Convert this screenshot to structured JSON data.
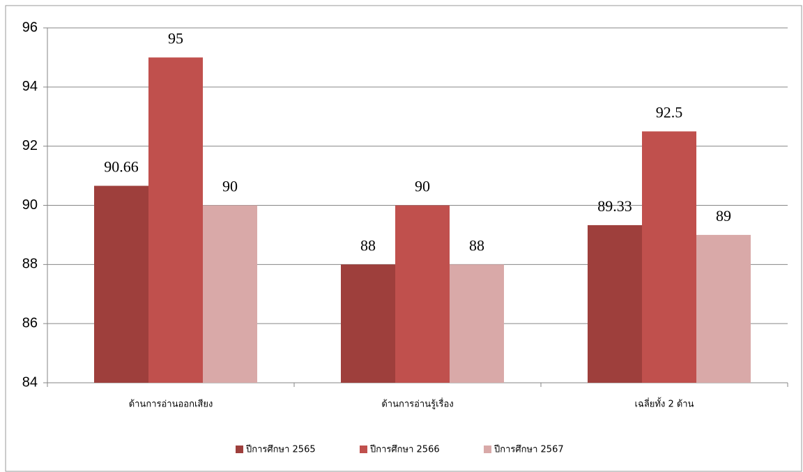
{
  "chart_data": {
    "type": "bar",
    "categories": [
      "ด้านการอ่านออกเสียง",
      "ด้านการอ่านรู้เรื่อง",
      "เฉลี่ยทั้ง 2 ด้าน"
    ],
    "series": [
      {
        "name": "ปีการศึกษา 2565",
        "color": "#9e3f3c",
        "values": [
          90.66,
          88,
          89.33
        ]
      },
      {
        "name": "ปีการศึกษา 2566",
        "color": "#c0504d",
        "values": [
          95,
          90,
          92.5
        ]
      },
      {
        "name": "ปีการศึกษา 2567",
        "color": "#d9a9a8",
        "values": [
          90,
          88,
          89
        ]
      }
    ],
    "ylim": [
      84,
      96
    ],
    "yticks": [
      84,
      86,
      88,
      90,
      92,
      94,
      96
    ],
    "grid": true,
    "legend": "bottom"
  }
}
